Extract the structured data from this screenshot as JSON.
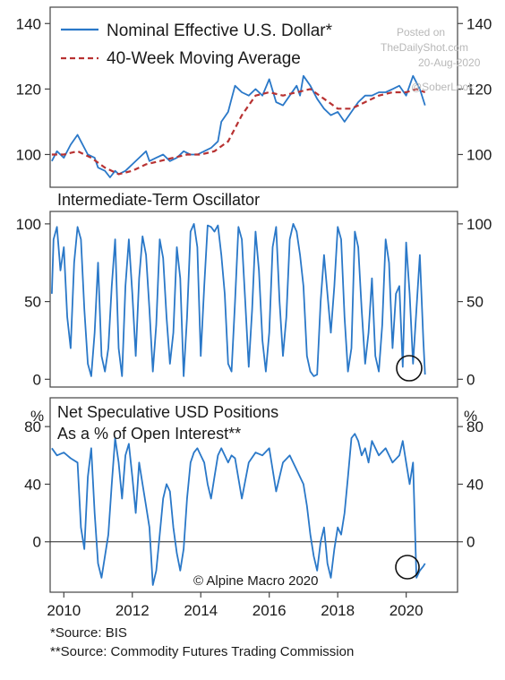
{
  "colors": {
    "line": "#2a78c8",
    "ma": "#b83232",
    "frame": "#444444",
    "circle": "#111111"
  },
  "watermark": {
    "line1": "Posted on",
    "line2": "TheDailyShot.com",
    "line3": "20-Aug-2020",
    "handle": "@SoberLook"
  },
  "copyright": "© Alpine Macro 2020",
  "sources": [
    "*Source: BIS",
    "**Source: Commodity Futures Trading Commission"
  ],
  "chart_data": [
    {
      "type": "line",
      "id": "panel1",
      "title": "",
      "legend": [
        "Nominal Effective U.S. Dollar*",
        "40-Week Moving Average"
      ],
      "legend_position": "top-left",
      "ylim": [
        90,
        145
      ],
      "yticks": [
        100,
        120,
        140
      ],
      "xlim": [
        2009.6,
        2021.5
      ],
      "series": [
        {
          "name": "Nominal Effective U.S. Dollar*",
          "style": "solid",
          "x": [
            2009.65,
            2009.8,
            2010.0,
            2010.2,
            2010.4,
            2010.5,
            2010.7,
            2010.9,
            2011.0,
            2011.2,
            2011.35,
            2011.5,
            2011.6,
            2011.8,
            2012.0,
            2012.2,
            2012.4,
            2012.5,
            2012.7,
            2012.9,
            2013.1,
            2013.3,
            2013.5,
            2013.7,
            2013.9,
            2014.1,
            2014.3,
            2014.5,
            2014.6,
            2014.8,
            2014.9,
            2015.0,
            2015.2,
            2015.4,
            2015.6,
            2015.8,
            2016.0,
            2016.2,
            2016.4,
            2016.6,
            2016.8,
            2016.9,
            2017.0,
            2017.2,
            2017.4,
            2017.6,
            2017.8,
            2018.0,
            2018.2,
            2018.4,
            2018.6,
            2018.8,
            2019.0,
            2019.2,
            2019.4,
            2019.6,
            2019.8,
            2020.0,
            2020.2,
            2020.3,
            2020.4,
            2020.55
          ],
          "y": [
            98,
            101,
            99,
            103,
            106,
            104,
            100,
            99,
            96,
            95,
            93,
            95,
            94,
            95,
            97,
            99,
            101,
            98,
            99,
            100,
            98,
            99,
            101,
            100,
            100,
            101,
            102,
            104,
            110,
            113,
            117,
            121,
            119,
            118,
            120,
            118,
            123,
            116,
            115,
            118,
            121,
            118,
            124,
            121,
            117,
            114,
            112,
            113,
            110,
            113,
            116,
            118,
            118,
            119,
            119,
            120,
            121,
            118,
            124,
            122,
            120,
            115
          ]
        },
        {
          "name": "40-Week Moving Average",
          "style": "dashed",
          "x": [
            2009.65,
            2010.0,
            2010.4,
            2010.8,
            2011.2,
            2011.6,
            2012.0,
            2012.4,
            2012.8,
            2013.2,
            2013.6,
            2014.0,
            2014.4,
            2014.8,
            2015.0,
            2015.2,
            2015.6,
            2016.0,
            2016.4,
            2016.8,
            2017.2,
            2017.6,
            2018.0,
            2018.4,
            2018.8,
            2019.2,
            2019.6,
            2020.0,
            2020.3,
            2020.55
          ],
          "y": [
            100,
            100,
            101,
            99,
            96,
            94,
            95,
            97,
            98,
            99,
            100,
            100,
            101,
            104,
            108,
            112,
            118,
            119,
            118,
            119,
            120,
            117,
            114,
            114,
            116,
            118,
            119,
            119,
            120,
            119
          ]
        }
      ]
    },
    {
      "type": "line",
      "id": "panel2",
      "title": "Intermediate-Term Oscillator",
      "ylim": [
        -5,
        108
      ],
      "yticks": [
        0,
        50,
        100
      ],
      "xlim": [
        2009.6,
        2021.5
      ],
      "series": [
        {
          "name": "",
          "x": [
            2009.65,
            2009.7,
            2009.8,
            2009.9,
            2010.0,
            2010.1,
            2010.2,
            2010.3,
            2010.4,
            2010.5,
            2010.6,
            2010.7,
            2010.8,
            2010.9,
            2011.0,
            2011.1,
            2011.2,
            2011.3,
            2011.4,
            2011.5,
            2011.6,
            2011.7,
            2011.8,
            2011.9,
            2012.0,
            2012.1,
            2012.2,
            2012.3,
            2012.4,
            2012.5,
            2012.6,
            2012.7,
            2012.8,
            2012.9,
            2013.0,
            2013.1,
            2013.2,
            2013.3,
            2013.4,
            2013.5,
            2013.6,
            2013.7,
            2013.8,
            2013.9,
            2014.0,
            2014.1,
            2014.2,
            2014.3,
            2014.4,
            2014.5,
            2014.6,
            2014.7,
            2014.8,
            2014.9,
            2015.0,
            2015.1,
            2015.2,
            2015.3,
            2015.4,
            2015.5,
            2015.6,
            2015.7,
            2015.8,
            2015.9,
            2016.0,
            2016.1,
            2016.2,
            2016.3,
            2016.4,
            2016.5,
            2016.6,
            2016.7,
            2016.8,
            2016.9,
            2017.0,
            2017.1,
            2017.2,
            2017.3,
            2017.4,
            2017.5,
            2017.6,
            2017.7,
            2017.8,
            2017.9,
            2018.0,
            2018.1,
            2018.2,
            2018.3,
            2018.4,
            2018.5,
            2018.6,
            2018.7,
            2018.8,
            2018.9,
            2019.0,
            2019.1,
            2019.2,
            2019.3,
            2019.4,
            2019.5,
            2019.6,
            2019.7,
            2019.8,
            2019.9,
            2020.0,
            2020.1,
            2020.2,
            2020.3,
            2020.4,
            2020.5,
            2020.55
          ],
          "y": [
            55,
            90,
            98,
            70,
            85,
            40,
            20,
            75,
            98,
            90,
            45,
            10,
            2,
            30,
            75,
            15,
            5,
            20,
            60,
            90,
            20,
            2,
            60,
            90,
            55,
            15,
            65,
            92,
            80,
            45,
            5,
            35,
            90,
            78,
            40,
            10,
            30,
            85,
            65,
            2,
            40,
            95,
            100,
            85,
            15,
            60,
            99,
            98,
            95,
            99,
            80,
            55,
            10,
            5,
            50,
            98,
            90,
            50,
            8,
            45,
            95,
            70,
            25,
            5,
            30,
            85,
            98,
            50,
            15,
            40,
            90,
            100,
            95,
            80,
            60,
            15,
            5,
            2,
            3,
            50,
            80,
            55,
            30,
            60,
            98,
            90,
            40,
            5,
            20,
            95,
            85,
            45,
            10,
            30,
            65,
            15,
            5,
            35,
            90,
            75,
            20,
            55,
            60,
            8,
            88,
            55,
            10,
            45,
            80,
            25,
            3
          ]
        }
      ]
    },
    {
      "type": "line",
      "id": "panel3",
      "title": [
        "Net Speculative USD Positions",
        "As a % of Open Interest**"
      ],
      "ylabel": "%",
      "ylim": [
        -35,
        100
      ],
      "yticks": [
        0,
        40,
        80
      ],
      "xlim": [
        2009.6,
        2021.5
      ],
      "xticks": [
        2010,
        2012,
        2014,
        2016,
        2018,
        2020
      ],
      "series": [
        {
          "name": "",
          "x": [
            2009.65,
            2009.8,
            2010.0,
            2010.2,
            2010.4,
            2010.5,
            2010.6,
            2010.7,
            2010.8,
            2010.9,
            2011.0,
            2011.1,
            2011.2,
            2011.3,
            2011.4,
            2011.5,
            2011.6,
            2011.7,
            2011.8,
            2011.9,
            2012.0,
            2012.1,
            2012.2,
            2012.3,
            2012.4,
            2012.5,
            2012.6,
            2012.7,
            2012.8,
            2012.9,
            2013.0,
            2013.1,
            2013.2,
            2013.3,
            2013.4,
            2013.5,
            2013.6,
            2013.7,
            2013.8,
            2013.9,
            2014.0,
            2014.1,
            2014.2,
            2014.3,
            2014.4,
            2014.5,
            2014.6,
            2014.7,
            2014.8,
            2014.9,
            2015.0,
            2015.2,
            2015.4,
            2015.6,
            2015.8,
            2016.0,
            2016.2,
            2016.4,
            2016.6,
            2016.8,
            2017.0,
            2017.1,
            2017.2,
            2017.3,
            2017.4,
            2017.5,
            2017.6,
            2017.7,
            2017.8,
            2017.9,
            2018.0,
            2018.1,
            2018.2,
            2018.3,
            2018.4,
            2018.5,
            2018.6,
            2018.7,
            2018.8,
            2018.9,
            2019.0,
            2019.2,
            2019.4,
            2019.6,
            2019.8,
            2019.9,
            2020.0,
            2020.1,
            2020.2,
            2020.3,
            2020.4,
            2020.5,
            2020.55
          ],
          "y": [
            65,
            60,
            62,
            58,
            55,
            10,
            -5,
            45,
            65,
            20,
            -15,
            -25,
            -10,
            5,
            40,
            72,
            55,
            30,
            60,
            68,
            45,
            20,
            55,
            40,
            25,
            10,
            -30,
            -20,
            5,
            30,
            40,
            35,
            10,
            -8,
            -20,
            -5,
            30,
            55,
            62,
            65,
            60,
            55,
            40,
            30,
            45,
            60,
            65,
            60,
            55,
            60,
            58,
            30,
            55,
            62,
            60,
            65,
            35,
            55,
            60,
            50,
            40,
            25,
            5,
            -10,
            -20,
            0,
            10,
            -15,
            -25,
            -5,
            10,
            5,
            20,
            45,
            72,
            75,
            70,
            60,
            65,
            55,
            70,
            60,
            65,
            55,
            60,
            70,
            55,
            40,
            55,
            -25,
            -20,
            -17,
            -15
          ]
        }
      ]
    }
  ]
}
